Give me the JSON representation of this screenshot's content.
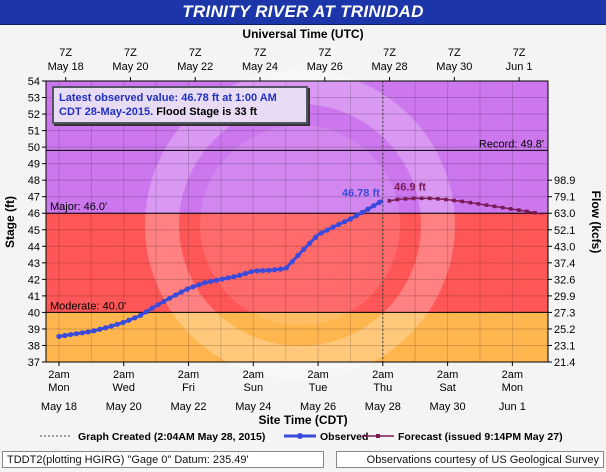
{
  "title": "TRINITY RIVER AT TRINIDAD",
  "top_axis_title": "Universal Time (UTC)",
  "bottom_axis_title": "Site Time (CDT)",
  "left_axis_title": "Stage (ft)",
  "right_axis_title": "Flow (kcfs)",
  "info_box": {
    "line1": "Latest observed value: 46.78 ft at 1:00 AM",
    "line2_blue": "CDT 28-May-2015.",
    "line2_black": " Flood Stage is 33 ft"
  },
  "legend": {
    "created": "Graph Created (2:04AM May 28, 2015)",
    "observed": "Observed",
    "forecast": "Forecast (issued 9:14PM May 27)"
  },
  "footer_left": "TDDT2(plotting HGIRG) \"Gage 0\" Datum: 235.49'",
  "footer_right": "Observations courtesy of US Geological Survey",
  "colors": {
    "major": "#ff5757",
    "moderate": "#ffb64f",
    "above_major": "#cc77ee",
    "observed": "#3a4bdc",
    "forecast": "#7a1a55",
    "title_bar": "#1c35a8"
  },
  "chart_data": {
    "type": "line",
    "top_ticks": [
      {
        "time": "7Z",
        "date": "May 18"
      },
      {
        "time": "7Z",
        "date": "May 20"
      },
      {
        "time": "7Z",
        "date": "May 22"
      },
      {
        "time": "7Z",
        "date": "May 24"
      },
      {
        "time": "7Z",
        "date": "May 26"
      },
      {
        "time": "7Z",
        "date": "May 28"
      },
      {
        "time": "7Z",
        "date": "May 30"
      },
      {
        "time": "7Z",
        "date": "Jun 1"
      }
    ],
    "bottom_ticks": [
      {
        "time": "2am",
        "day": "Mon",
        "date": "May 18"
      },
      {
        "time": "2am",
        "day": "Wed",
        "date": "May 20"
      },
      {
        "time": "2am",
        "day": "Fri",
        "date": "May 22"
      },
      {
        "time": "2am",
        "day": "Sun",
        "date": "May 24"
      },
      {
        "time": "2am",
        "day": "Tue",
        "date": "May 26"
      },
      {
        "time": "2am",
        "day": "Thu",
        "date": "May 28"
      },
      {
        "time": "2am",
        "day": "Sat",
        "date": "May 30"
      },
      {
        "time": "2am",
        "day": "Mon",
        "date": "Jun 1"
      }
    ],
    "stage_ticks": [
      37,
      38,
      39,
      40,
      41,
      42,
      43,
      44,
      45,
      46,
      47,
      48,
      49,
      50,
      51,
      52,
      53,
      54
    ],
    "flow_ticks": [
      {
        "stage": 37,
        "label": "21.4"
      },
      {
        "stage": 38,
        "label": "23.1"
      },
      {
        "stage": 39,
        "label": "25.2"
      },
      {
        "stage": 40,
        "label": "27.3"
      },
      {
        "stage": 41,
        "label": "29.9"
      },
      {
        "stage": 42,
        "label": "32.6"
      },
      {
        "stage": 43,
        "label": "37.4"
      },
      {
        "stage": 44,
        "label": "43.0"
      },
      {
        "stage": 45,
        "label": "52.1"
      },
      {
        "stage": 46,
        "label": "63.0"
      },
      {
        "stage": 47,
        "label": "79.1"
      },
      {
        "stage": 48,
        "label": "98.9"
      }
    ],
    "ylim": [
      37,
      54
    ],
    "x_range_days": [
      -0.4,
      15.1
    ],
    "thresholds": [
      {
        "label": "Moderate: 40.0'",
        "value": 40.0
      },
      {
        "label": "Major: 46.0'",
        "value": 46.0
      },
      {
        "label": "Record: 49.8'",
        "value": 49.8
      }
    ],
    "current_marker_day": 10.0,
    "observed_peak_label": "46.78 ft",
    "forecast_peak_label": "46.9 ft",
    "series": [
      {
        "name": "Observed",
        "x": [
          0.0,
          0.5,
          1.0,
          1.5,
          2.0,
          2.5,
          3.0,
          3.5,
          4.0,
          4.5,
          5.0,
          5.5,
          6.0,
          6.5,
          7.0,
          7.5,
          8.0,
          8.5,
          9.0,
          9.5,
          10.0
        ],
        "y": [
          38.55,
          38.7,
          38.85,
          39.1,
          39.4,
          39.8,
          40.4,
          40.95,
          41.45,
          41.8,
          42.0,
          42.2,
          42.5,
          42.55,
          42.65,
          43.7,
          44.7,
          45.2,
          45.65,
          46.2,
          46.78
        ]
      },
      {
        "name": "Forecast",
        "x": [
          10.2,
          10.5,
          11.0,
          11.5,
          12.0,
          12.5,
          13.0,
          13.5,
          14.0,
          14.5,
          14.9
        ],
        "y": [
          46.75,
          46.85,
          46.9,
          46.9,
          46.82,
          46.7,
          46.55,
          46.4,
          46.25,
          46.1,
          45.95
        ]
      }
    ]
  }
}
